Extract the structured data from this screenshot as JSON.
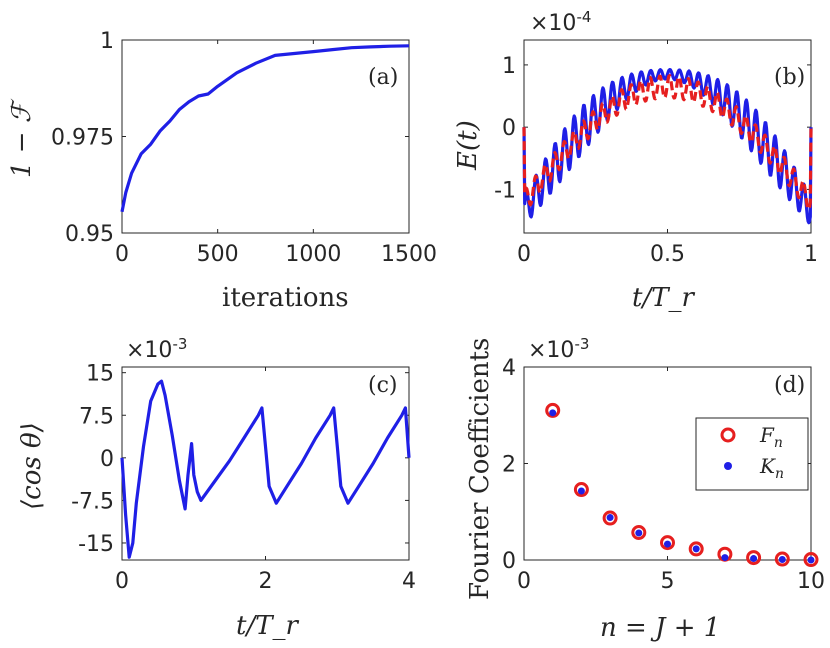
{
  "chart_data": [
    {
      "panel": "a",
      "type": "line",
      "tag": "(a)",
      "xlabel": "iterations",
      "ylabel": "1 − ℱ",
      "xlim": [
        0,
        1500
      ],
      "ylim": [
        0.95,
        1.0
      ],
      "xticks": [
        "0",
        "500",
        "1000",
        "1500"
      ],
      "yticks": [
        "0.95",
        "0.975",
        "1"
      ],
      "series": [
        {
          "name": "fidelity",
          "color": "#1f1fe6",
          "x": [
            0,
            20,
            50,
            100,
            150,
            200,
            250,
            300,
            350,
            400,
            450,
            500,
            600,
            700,
            800,
            900,
            1000,
            1100,
            1200,
            1300,
            1400,
            1500
          ],
          "y": [
            0.9555,
            0.9605,
            0.9655,
            0.9705,
            0.973,
            0.9765,
            0.979,
            0.982,
            0.984,
            0.9855,
            0.986,
            0.988,
            0.9915,
            0.994,
            0.996,
            0.9965,
            0.997,
            0.9975,
            0.998,
            0.9982,
            0.9984,
            0.9985
          ]
        }
      ]
    },
    {
      "panel": "b",
      "type": "line",
      "tag": "(b)",
      "xlabel": "t/T_r",
      "ylabel": "E(t)",
      "multiplier": "×10",
      "multiplier_exp": "-4",
      "xlim": [
        0,
        1
      ],
      "ylim": [
        -1.7,
        1.4
      ],
      "xticks": [
        "0",
        "0.5",
        "1"
      ],
      "yticks": [
        "-1",
        "0",
        "1"
      ],
      "series": [
        {
          "name": "E solid",
          "color": "#1f1fe6"
        },
        {
          "name": "E dashed",
          "color": "#e61f1f"
        }
      ]
    },
    {
      "panel": "c",
      "type": "line",
      "tag": "(c)",
      "xlabel": "t/T_r",
      "ylabel": "⟨cos θ⟩",
      "multiplier": "×10",
      "multiplier_exp": "-3",
      "xlim": [
        0,
        4
      ],
      "ylim": [
        -18,
        16
      ],
      "xticks": [
        "0",
        "2",
        "4"
      ],
      "yticks": [
        "-15",
        "-7.5",
        "0",
        "7.5",
        "15"
      ],
      "series": [
        {
          "name": "cos theta",
          "color": "#1f1fe6",
          "x": [
            0,
            0.05,
            0.1,
            0.15,
            0.2,
            0.3,
            0.4,
            0.5,
            0.55,
            0.6,
            0.7,
            0.8,
            0.88,
            0.92,
            0.97,
            1.0,
            1.05,
            1.1,
            1.3,
            1.5,
            1.7,
            1.9,
            1.95,
            2.0,
            2.05,
            2.15,
            2.3,
            2.5,
            2.7,
            2.9,
            2.95,
            3.0,
            3.05,
            3.15,
            3.3,
            3.5,
            3.7,
            3.9,
            3.95,
            4.0
          ],
          "y": [
            0,
            -10,
            -17.5,
            -15,
            -8,
            2,
            10,
            13,
            13.5,
            11,
            4,
            -4,
            -9,
            -3,
            2.5,
            -3,
            -6,
            -7.5,
            -4,
            -0.5,
            3.5,
            7.5,
            8.8,
            2,
            -5,
            -8,
            -5,
            -1,
            3.5,
            7.5,
            8.8,
            2,
            -5,
            -8,
            -5,
            -1,
            3.5,
            7.5,
            8.8,
            0
          ]
        }
      ]
    },
    {
      "panel": "d",
      "type": "scatter",
      "tag": "(d)",
      "xlabel": "n = J + 1",
      "ylabel": "Fourier Coefficients",
      "multiplier": "×10",
      "multiplier_exp": "-3",
      "xlim": [
        0,
        10
      ],
      "ylim": [
        0,
        4
      ],
      "xticks": [
        "0",
        "5",
        "10"
      ],
      "yticks": [
        "0",
        "2",
        "4"
      ],
      "legend_position": "right",
      "series": [
        {
          "name": "F",
          "subscript": "n",
          "color": "#e61f1f",
          "marker": "open-circle",
          "x": [
            1,
            2,
            3,
            4,
            5,
            6,
            7,
            8,
            9,
            10
          ],
          "y": [
            3.1,
            1.46,
            0.87,
            0.57,
            0.36,
            0.23,
            0.12,
            0.05,
            0.02,
            0.01
          ]
        },
        {
          "name": "K",
          "subscript": "n",
          "color": "#1f1fe6",
          "marker": "dot",
          "x": [
            1,
            2,
            3,
            4,
            5,
            6,
            7,
            8,
            9,
            10
          ],
          "y": [
            3.05,
            1.43,
            0.88,
            0.56,
            0.33,
            0.23,
            0.05,
            0.03,
            0.01,
            0.0
          ]
        }
      ]
    }
  ]
}
